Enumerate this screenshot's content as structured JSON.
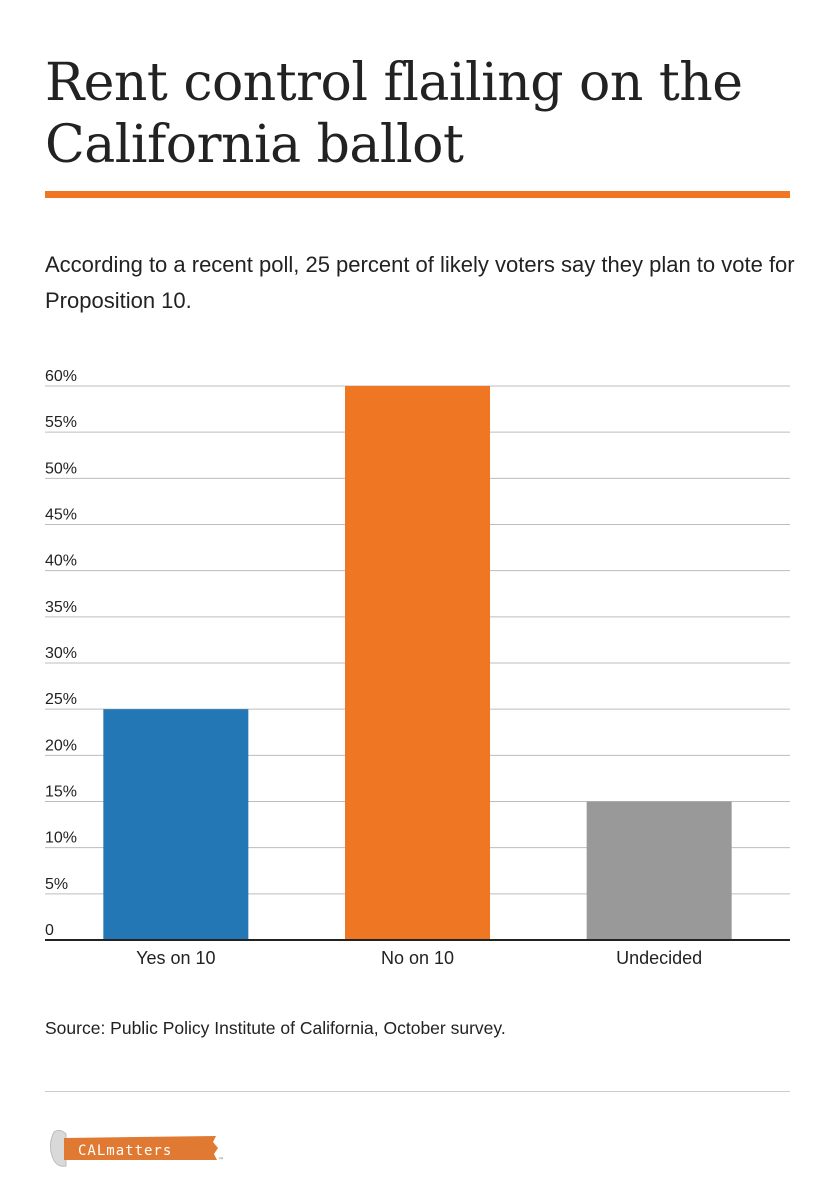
{
  "title": "Rent control flailing on the California ballot",
  "subtitle": "According to a recent poll, 25 percent of likely voters say they plan to vote for Proposition 10.",
  "source": "Source: Public Policy Institute of California, October survey.",
  "logo": {
    "text": "CALmatters",
    "tm": "™",
    "color": "#e07a32"
  },
  "colors": {
    "accent": "#ef7623",
    "yes": "#2277b4",
    "no": "#ef7623",
    "undecided": "#999999"
  },
  "chart_data": {
    "type": "bar",
    "categories": [
      "Yes on 10",
      "No on 10",
      "Undecided"
    ],
    "values": [
      25,
      60,
      15
    ],
    "colors": [
      "#2277b4",
      "#ef7623",
      "#999999"
    ],
    "title": "",
    "xlabel": "",
    "ylabel": "",
    "ylim": [
      0,
      60
    ],
    "yticks": [
      0,
      5,
      10,
      15,
      20,
      25,
      30,
      35,
      40,
      45,
      50,
      55,
      60
    ],
    "ytick_labels": [
      "0",
      "5%",
      "10%",
      "15%",
      "20%",
      "25%",
      "30%",
      "35%",
      "40%",
      "45%",
      "50%",
      "55%",
      "60%"
    ],
    "grid": true,
    "legend": "none"
  }
}
